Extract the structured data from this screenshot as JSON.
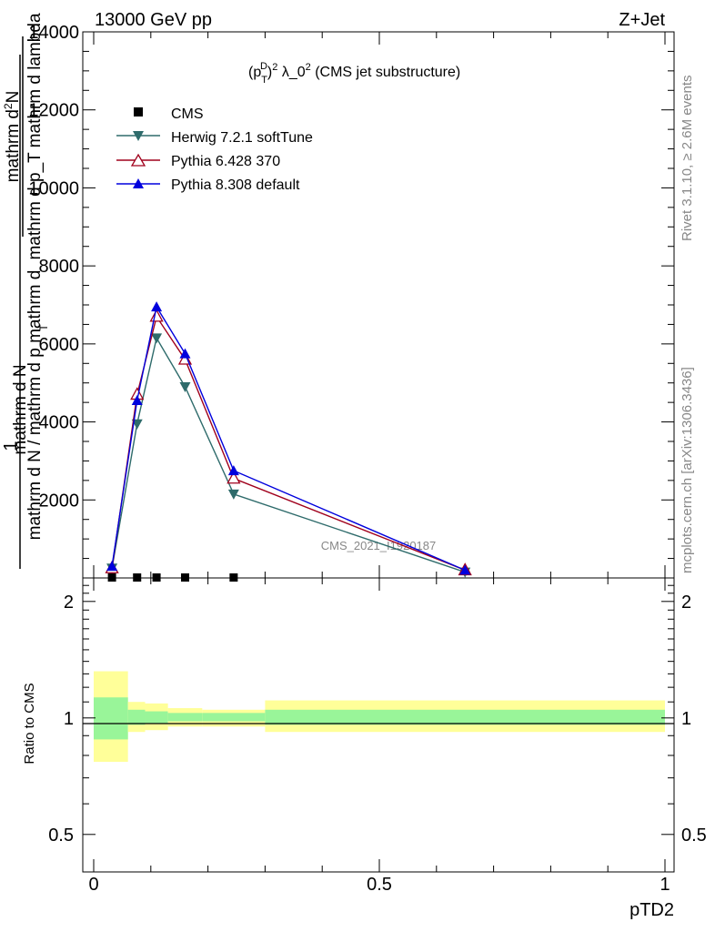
{
  "header": {
    "left_label": "13000 GeV pp",
    "right_label": "Z+Jet"
  },
  "side_labels": {
    "rivet": "Rivet 3.1.10, ≥ 2.6M events",
    "mcplots": "mcplots.cern.ch [arXiv:1306.3436]"
  },
  "colors": {
    "herwig": "#2e6b6b",
    "pythia6": "#a0001c",
    "pythia8": "#0000dd",
    "cms": "#000000",
    "band_inner": "#99f599",
    "band_outer": "#ffff99"
  },
  "chart_data": [
    {
      "type": "line",
      "panel": "main",
      "title": "(p_T^D)^2 λ_0^2 (CMS jet substructure)",
      "title_parts": {
        "p": "(p",
        "sub": "T",
        "sup": "D",
        "close": ")",
        "sup2": "2",
        "mid": " λ_0",
        "sup3": "2",
        "tail": " (CMS jet substructure)"
      },
      "ylabel_parts": {
        "one": "1",
        "num": "mathrm d N",
        "den": "mathrm d N / mathrm d p mathrm d",
        "sub": "T",
        "frac2_num": "mathrm d",
        "frac2_num_sup": "2",
        "frac2_num2": "N",
        "frac2_den": "mathrm d p",
        "frac2_den_sub": "T",
        "frac2_den2": " mathrm d lambda",
        "mid": "mathrm d p_T mathrm d lambda"
      },
      "xlabel": "pTD2",
      "xlim": [
        0,
        1
      ],
      "ylim": [
        0,
        14000
      ],
      "yticks": [
        {
          "v": 2000,
          "label": "2000"
        },
        {
          "v": 4000,
          "label": "4000"
        },
        {
          "v": 6000,
          "label": "6000"
        },
        {
          "v": 8000,
          "label": "8000"
        },
        {
          "v": 10000,
          "label": "10000"
        },
        {
          "v": 12000,
          "label": "12000"
        },
        {
          "v": 14000,
          "label": "14000"
        }
      ],
      "legend_position": "top-left",
      "watermark": "CMS_2021_I1920187",
      "series": [
        {
          "name": "CMS",
          "key": "cms",
          "marker": "square",
          "x": [
            0.032,
            0.076,
            0.11,
            0.16,
            0.245
          ],
          "y": [
            0,
            0,
            0,
            0,
            0
          ]
        },
        {
          "name": "Herwig 7.2.1 softTune",
          "key": "herwig",
          "marker": "triangle-down",
          "x": [
            0.032,
            0.076,
            0.11,
            0.16,
            0.245,
            0.65
          ],
          "y": [
            250,
            3950,
            6150,
            4900,
            2150,
            150
          ]
        },
        {
          "name": "Pythia 6.428 370",
          "key": "pythia6",
          "marker": "triangle-up-open",
          "x": [
            0.032,
            0.076,
            0.11,
            0.16,
            0.245,
            0.65
          ],
          "y": [
            250,
            4700,
            6700,
            5600,
            2550,
            200
          ]
        },
        {
          "name": "Pythia 8.308 default",
          "key": "pythia8",
          "marker": "triangle-up",
          "x": [
            0.032,
            0.076,
            0.11,
            0.16,
            0.245,
            0.65
          ],
          "y": [
            300,
            4550,
            6950,
            5750,
            2750,
            200
          ]
        }
      ]
    },
    {
      "type": "area",
      "panel": "ratio",
      "ylabel": "Ratio to CMS",
      "ylim": [
        0.4,
        2.3
      ],
      "log_scale": true,
      "yticks": [
        {
          "v": 0.5,
          "label": "0.5"
        },
        {
          "v": 1,
          "label": "1"
        },
        {
          "v": 2,
          "label": "2"
        }
      ],
      "xticks": [
        {
          "v": 0,
          "label": "0"
        },
        {
          "v": 0.5,
          "label": "0.5"
        },
        {
          "v": 1,
          "label": "1"
        }
      ],
      "bins": [
        {
          "lo": 0.0,
          "hi": 0.06,
          "inner": [
            0.88,
            1.13
          ],
          "outer": [
            0.77,
            1.32
          ]
        },
        {
          "lo": 0.06,
          "hi": 0.09,
          "inner": [
            0.96,
            1.05
          ],
          "outer": [
            0.92,
            1.1
          ]
        },
        {
          "lo": 0.09,
          "hi": 0.13,
          "inner": [
            0.97,
            1.04
          ],
          "outer": [
            0.93,
            1.09
          ]
        },
        {
          "lo": 0.13,
          "hi": 0.19,
          "inner": [
            0.98,
            1.03
          ],
          "outer": [
            0.95,
            1.06
          ]
        },
        {
          "lo": 0.19,
          "hi": 0.3,
          "inner": [
            0.98,
            1.03
          ],
          "outer": [
            0.95,
            1.05
          ]
        },
        {
          "lo": 0.3,
          "hi": 1.0,
          "inner": [
            0.96,
            1.05
          ],
          "outer": [
            0.92,
            1.11
          ]
        }
      ]
    }
  ]
}
